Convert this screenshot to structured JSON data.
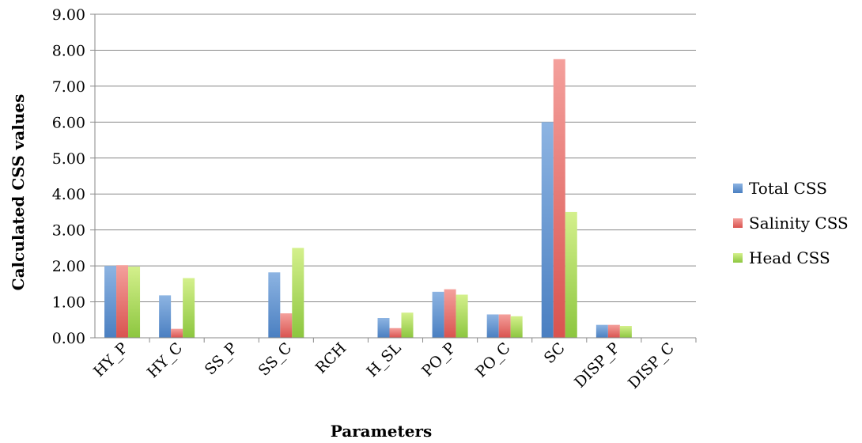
{
  "chart_data": {
    "type": "bar",
    "title": "",
    "xlabel": "Parameters",
    "ylabel": "Calculated CSS values",
    "ylim": [
      0,
      9
    ],
    "yticks": [
      "0.00",
      "1.00",
      "2.00",
      "3.00",
      "4.00",
      "5.00",
      "6.00",
      "7.00",
      "8.00",
      "9.00"
    ],
    "grid": "horizontal",
    "legend_position": "right",
    "categories": [
      "HY_P",
      "HY_C",
      "SS_P",
      "SS_C",
      "RCH",
      "H_SL",
      "PO_P",
      "PO_C",
      "SC",
      "DISP_P",
      "DISP_C"
    ],
    "series": [
      {
        "name": "Total CSS",
        "color": "#8db4e2",
        "color_dark": "#4a7fc1",
        "values": [
          2.0,
          1.18,
          0.0,
          1.82,
          0.0,
          0.55,
          1.28,
          0.65,
          6.0,
          0.36,
          0.0
        ]
      },
      {
        "name": "Salinity CSS",
        "color": "#f4a09c",
        "color_dark": "#d9534f",
        "values": [
          2.02,
          0.25,
          0.0,
          0.68,
          0.0,
          0.27,
          1.35,
          0.65,
          7.75,
          0.36,
          0.0
        ]
      },
      {
        "name": "Head CSS",
        "color": "#d4f08c",
        "color_dark": "#8cc63f",
        "values": [
          1.98,
          1.66,
          0.0,
          2.5,
          0.0,
          0.7,
          1.2,
          0.6,
          3.5,
          0.33,
          0.0
        ]
      }
    ]
  }
}
